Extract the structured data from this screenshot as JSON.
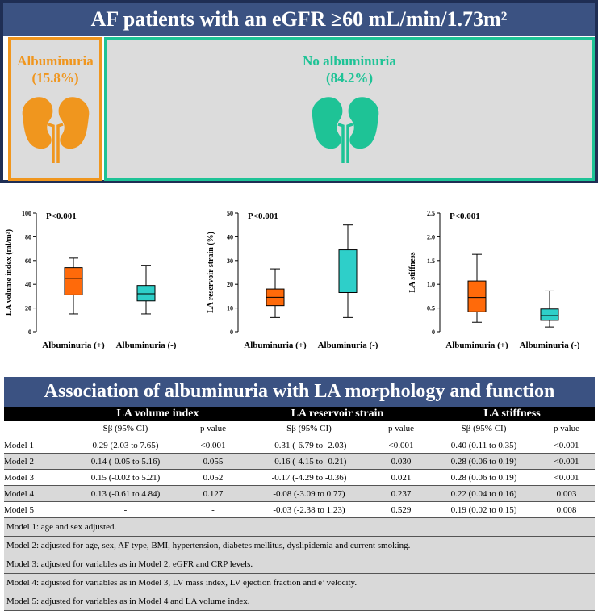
{
  "top": {
    "title": "AF patients with an eGFR ≥60 mL/min/1.73m²",
    "albuminuria": {
      "label": "Albuminuria",
      "pct": "(15.8%)",
      "color": "#f0961e"
    },
    "no_albuminuria": {
      "label": "No albuminuria",
      "pct": "(84.2%)",
      "color": "#1ec396"
    }
  },
  "chart_data": [
    {
      "type": "box",
      "ylabel": "LA volume index (ml/m²)",
      "annotation": "P<0.001",
      "ylim": [
        0,
        100
      ],
      "yticks": [
        0,
        20,
        40,
        60,
        80,
        100
      ],
      "categories": [
        "Albuminuria (+)",
        "Albuminuria (-)"
      ],
      "boxes": [
        {
          "min": 15,
          "q1": 31,
          "median": 45,
          "q3": 54,
          "max": 62,
          "color": "#ff6a0a"
        },
        {
          "min": 15,
          "q1": 26,
          "median": 32,
          "q3": 39,
          "max": 56,
          "color": "#2ecfc9"
        }
      ]
    },
    {
      "type": "box",
      "ylabel": "LA reservoir strain (%)",
      "annotation": "P<0.001",
      "ylim": [
        0,
        50
      ],
      "yticks": [
        0,
        10,
        20,
        30,
        40,
        50
      ],
      "categories": [
        "Albuminuria (+)",
        "Albuminuria (-)"
      ],
      "boxes": [
        {
          "min": 6,
          "q1": 11,
          "median": 14.5,
          "q3": 18,
          "max": 26.5,
          "color": "#ff6a0a"
        },
        {
          "min": 6,
          "q1": 16.5,
          "median": 26,
          "q3": 34.5,
          "max": 45,
          "color": "#2ecfc9"
        }
      ]
    },
    {
      "type": "box",
      "ylabel": "LA stiffness",
      "annotation": "P<0.001",
      "ylim": [
        0,
        2.5
      ],
      "yticks": [
        "0",
        "0.5",
        "1.0",
        "1.5",
        "2.0",
        "2.5"
      ],
      "categories": [
        "Albuminuria (+)",
        "Albuminuria (-)"
      ],
      "boxes": [
        {
          "min": 0.2,
          "q1": 0.42,
          "median": 0.72,
          "q3": 1.07,
          "max": 1.63,
          "color": "#ff6a0a"
        },
        {
          "min": 0.1,
          "q1": 0.24,
          "median": 0.34,
          "q3": 0.48,
          "max": 0.86,
          "color": "#2ecfc9"
        }
      ]
    }
  ],
  "table": {
    "title": "Association of albuminuria with LA morphology and function",
    "groups": [
      "LA volume index",
      "LA reservoir strain",
      "LA stiffness"
    ],
    "subheaders": [
      "Sβ (95% CI)",
      "p value",
      "Sβ (95% CI)",
      "p value",
      "Sβ (95% CI)",
      "p value"
    ],
    "rows": [
      {
        "model": "Model 1",
        "cells": [
          "0.29 (2.03 to 7.65)",
          "<0.001",
          "-0.31 (-6.79 to -2.03)",
          "<0.001",
          "0.40 (0.11 to 0.35)",
          "<0.001"
        ]
      },
      {
        "model": "Model 2",
        "cells": [
          "0.14 (-0.05 to 5.16)",
          "0.055",
          "-0.16 (-4.15 to -0.21)",
          "0.030",
          "0.28 (0.06 to 0.19)",
          "<0.001"
        ]
      },
      {
        "model": "Model 3",
        "cells": [
          "0.15 (-0.02 to 5.21)",
          "0.052",
          "-0.17 (-4.29 to -0.36)",
          "0.021",
          "0.28 (0.06 to 0.19)",
          "<0.001"
        ]
      },
      {
        "model": "Model 4",
        "cells": [
          "0.13 (-0.61 to 4.84)",
          "0.127",
          "-0.08 (-3.09 to 0.77)",
          "0.237",
          "0.22 (0.04 to 0.16)",
          "0.003"
        ]
      },
      {
        "model": "Model 5",
        "cells": [
          "-",
          "-",
          "-0.03 (-2.38 to 1.23)",
          "0.529",
          "0.19 (0.02 to 0.15)",
          "0.008"
        ]
      }
    ],
    "notes": [
      "Model 1: age and sex adjusted.",
      "Model 2: adjusted for age, sex, AF type, BMI, hypertension, diabetes mellitus, dyslipidemia and current smoking.",
      "Model 3: adjusted for variables as in Model 2, eGFR and CRP levels.",
      "Model 4: adjusted for variables as in Model 3, LV mass index, LV ejection fraction and e’ velocity.",
      "Model 5: adjusted for variables as in Model 4 and LA volume index."
    ]
  }
}
